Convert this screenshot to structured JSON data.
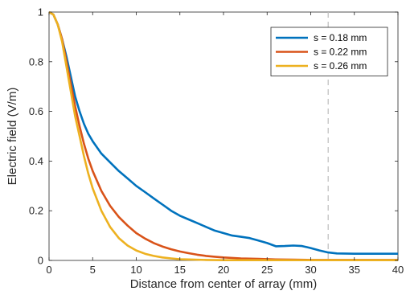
{
  "chart_data": {
    "type": "line",
    "title": "",
    "xlabel": "Distance from center of array (mm)",
    "ylabel": "Electric field (V/m)",
    "xlim": [
      0,
      40
    ],
    "ylim": [
      0,
      1
    ],
    "xticks": [
      "0",
      "5",
      "10",
      "15",
      "20",
      "25",
      "30",
      "35",
      "40"
    ],
    "yticks": [
      "0",
      "0.2",
      "0.4",
      "0.6",
      "0.8",
      "1"
    ],
    "grid": false,
    "legend_position": "top-right",
    "reference_line": {
      "x": 32,
      "style": "dashed",
      "color": "#bdbdbd"
    },
    "series": [
      {
        "name": "s = 0.18 mm",
        "color": "#0072BD",
        "x": [
          0,
          0.5,
          1,
          1.5,
          2,
          2.5,
          3,
          3.5,
          4,
          4.5,
          5,
          6,
          7,
          8,
          9,
          10,
          11,
          12,
          13,
          14,
          15,
          16,
          17,
          18,
          19,
          20,
          21,
          22,
          23,
          24,
          25,
          26,
          27,
          28,
          29,
          30,
          31,
          32,
          33,
          35,
          38,
          40
        ],
        "y": [
          1.0,
          0.99,
          0.95,
          0.89,
          0.82,
          0.74,
          0.66,
          0.6,
          0.55,
          0.51,
          0.48,
          0.43,
          0.395,
          0.36,
          0.33,
          0.3,
          0.275,
          0.25,
          0.225,
          0.2,
          0.18,
          0.165,
          0.15,
          0.135,
          0.12,
          0.11,
          0.1,
          0.095,
          0.09,
          0.08,
          0.07,
          0.057,
          0.058,
          0.06,
          0.058,
          0.05,
          0.04,
          0.032,
          0.028,
          0.027,
          0.027,
          0.027
        ]
      },
      {
        "name": "s = 0.22 mm",
        "color": "#D95319",
        "x": [
          0,
          0.5,
          1,
          1.5,
          2,
          2.5,
          3,
          3.5,
          4,
          4.5,
          5,
          6,
          7,
          8,
          9,
          10,
          11,
          12,
          13,
          14,
          15,
          16,
          17,
          18,
          19,
          20,
          22,
          24,
          26,
          28,
          30,
          32,
          35,
          40
        ],
        "y": [
          1.0,
          0.99,
          0.95,
          0.89,
          0.8,
          0.71,
          0.62,
          0.54,
          0.47,
          0.41,
          0.36,
          0.28,
          0.22,
          0.175,
          0.14,
          0.11,
          0.088,
          0.07,
          0.056,
          0.045,
          0.036,
          0.029,
          0.023,
          0.018,
          0.015,
          0.012,
          0.008,
          0.006,
          0.004,
          0.003,
          0.002,
          0.002,
          0.002,
          0.002
        ]
      },
      {
        "name": "s = 0.26 mm",
        "color": "#EDB120",
        "x": [
          0,
          0.5,
          1,
          1.5,
          2,
          2.5,
          3,
          3.5,
          4,
          4.5,
          5,
          6,
          7,
          8,
          9,
          10,
          11,
          12,
          13,
          14,
          15,
          16,
          18,
          20,
          25,
          30,
          35,
          40
        ],
        "y": [
          1.0,
          0.99,
          0.95,
          0.88,
          0.78,
          0.68,
          0.58,
          0.5,
          0.42,
          0.35,
          0.29,
          0.2,
          0.135,
          0.09,
          0.06,
          0.04,
          0.027,
          0.018,
          0.012,
          0.008,
          0.005,
          0.004,
          0.002,
          0.001,
          0.001,
          0.001,
          0.001,
          0.001
        ]
      }
    ]
  }
}
